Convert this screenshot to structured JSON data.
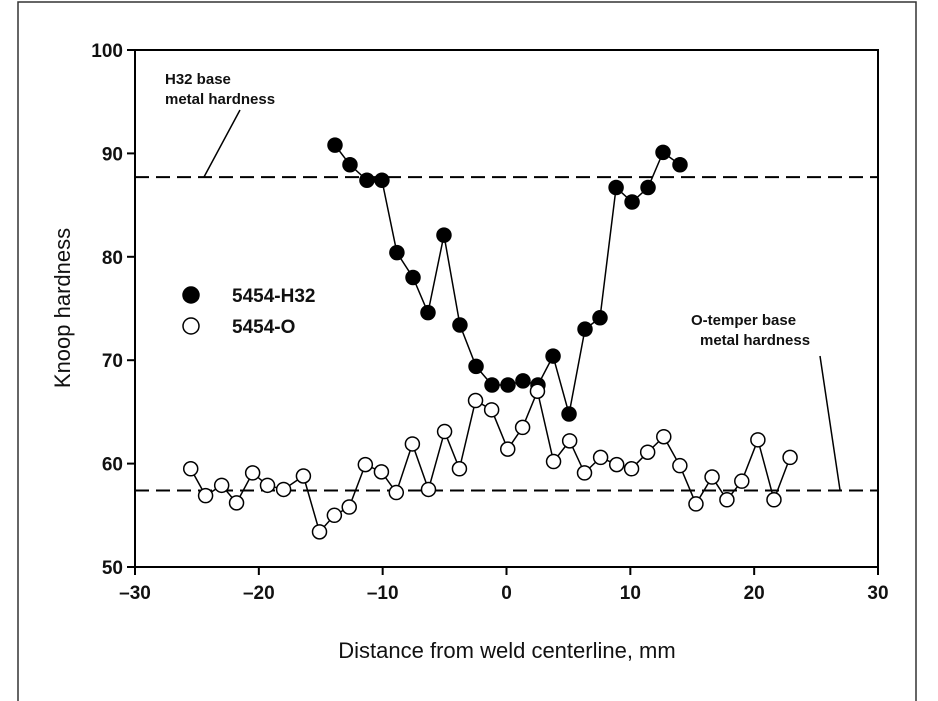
{
  "chart_data": {
    "type": "line",
    "x_label": "Distance from weld centerline, mm",
    "y_label": "Knoop hardness",
    "xlim": [
      -30,
      30
    ],
    "xticks": [
      {
        "value": -30,
        "label": "–30"
      },
      {
        "value": -20,
        "label": "–20"
      },
      {
        "value": -10,
        "label": "–10"
      },
      0,
      10,
      20,
      30
    ],
    "ylim": [
      50,
      100
    ],
    "yticks": [
      50,
      60,
      70,
      80,
      90,
      100
    ],
    "reference_lines": [
      87.7,
      57.4
    ],
    "annotations": [
      {
        "lines": [
          "H32 base",
          "metal hardness"
        ]
      },
      {
        "lines": [
          "O-temper base",
          "metal hardness"
        ]
      }
    ],
    "series": [
      {
        "name": "5454-H32",
        "color": "#000000",
        "fill": "#000000",
        "x": [
          -13.85,
          -12.64,
          -11.27,
          -10.06,
          -8.85,
          -7.55,
          -6.34,
          -5.05,
          -3.76,
          -2.46,
          -1.17,
          0.12,
          1.33,
          2.54,
          3.76,
          5.05,
          6.34,
          7.55,
          8.85,
          10.14,
          11.43,
          12.64,
          14.01
        ],
        "values": [
          90.8,
          88.9,
          87.4,
          87.4,
          80.4,
          78.0,
          74.6,
          82.1,
          73.4,
          69.4,
          67.6,
          67.6,
          68.0,
          67.6,
          70.4,
          64.8,
          73.0,
          74.1,
          86.7,
          85.3,
          86.7,
          90.1,
          88.9
        ]
      },
      {
        "name": "5454-O",
        "color": "#000000",
        "fill": "#ffffff",
        "x": [
          -25.5,
          -24.3,
          -23.0,
          -21.8,
          -20.5,
          -19.3,
          -18.0,
          -16.4,
          -15.1,
          -13.9,
          -12.7,
          -11.4,
          -10.1,
          -8.9,
          -7.6,
          -6.3,
          -5.0,
          -3.8,
          -2.5,
          -1.2,
          0.1,
          1.3,
          2.5,
          3.8,
          5.1,
          6.3,
          7.6,
          8.9,
          10.1,
          11.4,
          12.7,
          14.0,
          15.3,
          16.6,
          17.8,
          19.0,
          20.3,
          21.6,
          22.9
        ],
        "values": [
          59.5,
          56.9,
          57.9,
          56.2,
          59.1,
          57.9,
          57.5,
          58.8,
          53.4,
          55.0,
          55.8,
          59.9,
          59.2,
          57.2,
          61.9,
          57.5,
          63.1,
          59.5,
          66.1,
          65.2,
          61.4,
          63.5,
          67.0,
          60.2,
          62.2,
          59.1,
          60.6,
          59.9,
          59.5,
          61.1,
          62.6,
          59.8,
          56.1,
          58.7,
          56.5,
          58.3,
          62.3,
          56.5,
          60.6
        ]
      }
    ]
  }
}
